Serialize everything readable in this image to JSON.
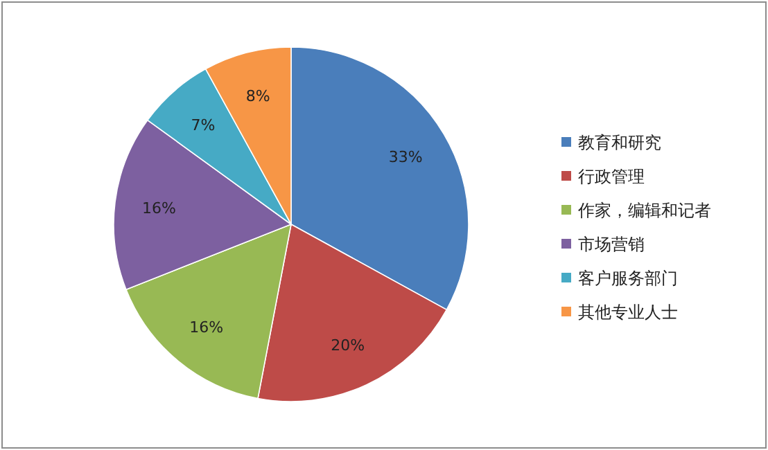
{
  "chart_data": {
    "type": "pie",
    "categories": [
      "教育和研究",
      "行政管理",
      "作家，编辑和记者",
      "市场营销",
      "客户服务部门",
      "其他专业人士"
    ],
    "values": [
      33,
      20,
      16,
      16,
      7,
      8
    ],
    "value_labels": [
      "33%",
      "20%",
      "16%",
      "16%",
      "7%",
      "8%"
    ],
    "colors": [
      "#4a7ebb",
      "#be4b48",
      "#98b954",
      "#7d60a0",
      "#46aac5",
      "#f79646"
    ],
    "legend": "right"
  }
}
